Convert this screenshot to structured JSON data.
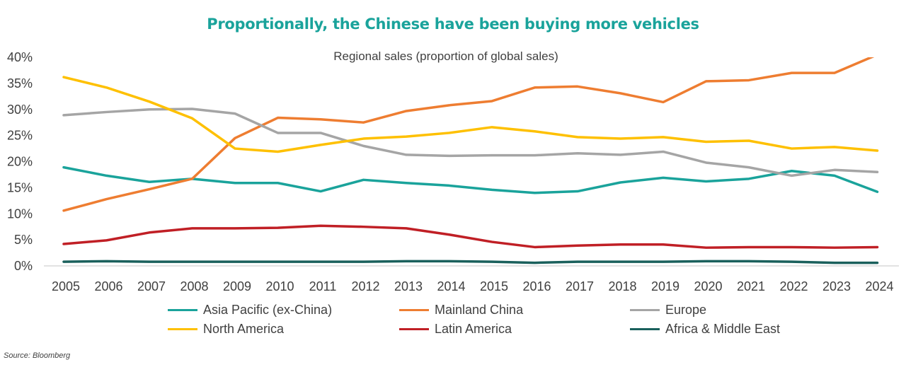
{
  "title": "Proportionally, the Chinese have been buying more vehicles",
  "subtitle": "Regional sales (proportion of global sales)",
  "source": "Source: Bloomberg",
  "colors": {
    "title": "#1aa39b",
    "axis": "#d9d9d9",
    "text": "#404040"
  },
  "chart_data": {
    "type": "line",
    "title": "Proportionally, the Chinese have been buying more vehicles",
    "subtitle": "Regional sales (proportion of global sales)",
    "xlabel": "",
    "ylabel": "",
    "categories": [
      "2005",
      "2006",
      "2007",
      "2008",
      "2009",
      "2010",
      "2011",
      "2012",
      "2013",
      "2014",
      "2015",
      "2016",
      "2017",
      "2018",
      "2019",
      "2020",
      "2021",
      "2022",
      "2023",
      "2024"
    ],
    "y_ticks": [
      "0%",
      "5%",
      "10%",
      "15%",
      "20%",
      "25%",
      "30%",
      "35%",
      "40%"
    ],
    "ylim": [
      0,
      40
    ],
    "grid": false,
    "legend_position": "bottom",
    "series": [
      {
        "name": "Asia Pacific (ex-China)",
        "color": "#1aa39b",
        "values": [
          18.9,
          17.3,
          16.1,
          16.7,
          15.9,
          15.9,
          14.3,
          16.5,
          15.9,
          15.4,
          14.6,
          14.0,
          14.3,
          16.0,
          16.9,
          16.2,
          16.7,
          18.2,
          17.3,
          14.2
        ]
      },
      {
        "name": "Mainland China",
        "color": "#ee7d31",
        "values": [
          10.6,
          12.8,
          14.7,
          16.7,
          24.5,
          28.4,
          28.1,
          27.5,
          29.7,
          30.8,
          31.6,
          34.2,
          34.4,
          33.1,
          31.4,
          35.4,
          35.6,
          37.0,
          37.0,
          40.5
        ]
      },
      {
        "name": "Europe",
        "color": "#a5a5a5",
        "values": [
          28.9,
          29.5,
          30.0,
          30.1,
          29.2,
          25.5,
          25.5,
          23.0,
          21.3,
          21.1,
          21.2,
          21.2,
          21.6,
          21.3,
          21.9,
          19.8,
          18.9,
          17.3,
          18.4,
          18.0
        ]
      },
      {
        "name": "North America",
        "color": "#fec000",
        "values": [
          36.2,
          34.2,
          31.5,
          28.3,
          22.5,
          21.9,
          23.2,
          24.4,
          24.8,
          25.5,
          26.6,
          25.8,
          24.7,
          24.4,
          24.7,
          23.8,
          24.0,
          22.5,
          22.8,
          22.1
        ]
      },
      {
        "name": "Latin America",
        "color": "#c01f25",
        "values": [
          4.2,
          4.9,
          6.4,
          7.2,
          7.2,
          7.3,
          7.7,
          7.5,
          7.2,
          6.0,
          4.6,
          3.6,
          3.9,
          4.1,
          4.1,
          3.5,
          3.6,
          3.6,
          3.5,
          3.6
        ]
      },
      {
        "name": "Africa & Middle East",
        "color": "#1a605c",
        "values": [
          0.8,
          0.9,
          0.8,
          0.8,
          0.8,
          0.8,
          0.8,
          0.8,
          0.9,
          0.9,
          0.8,
          0.6,
          0.8,
          0.8,
          0.8,
          0.9,
          0.9,
          0.8,
          0.6,
          0.6
        ]
      }
    ]
  }
}
